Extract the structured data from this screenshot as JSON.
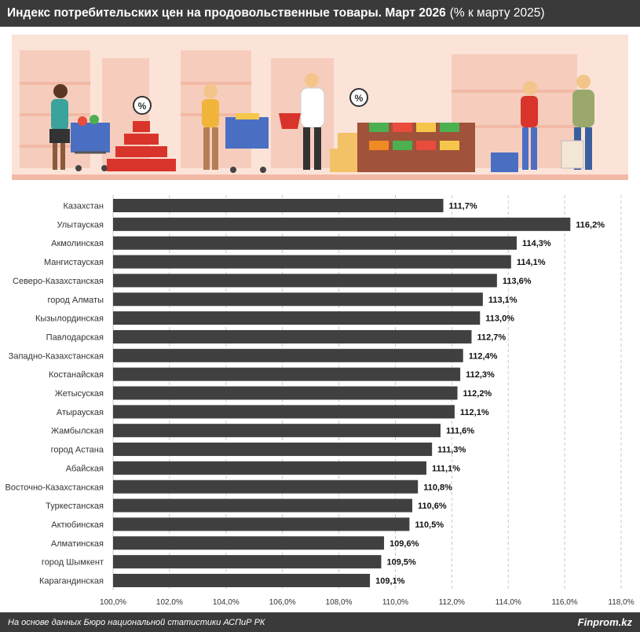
{
  "title": {
    "main": "Индекс потребительских цен на продовольственные товары. Март 2026",
    "sub": "(% к марту 2025)"
  },
  "footer": {
    "source": "На основе данных Бюро национальной статистики АСПиР РК",
    "brand": "Finprom.kz"
  },
  "colors": {
    "bar": "#404040",
    "header_bg": "#3a3a3a",
    "illustration_bg": "#fbe3d8"
  },
  "chart_data": {
    "type": "bar",
    "orientation": "horizontal",
    "categories": [
      "Казахстан",
      "Улытауская",
      "Акмолинская",
      "Мангистауская",
      "Северо-Казахстанская",
      "город Алматы",
      "Кызылординская",
      "Павлодарская",
      "Западно-Казахстанская",
      "Костанайская",
      "Жетысуская",
      "Атырауская",
      "Жамбылская",
      "город Астана",
      "Абайская",
      "Восточно-Казахстанская",
      "Туркестанская",
      "Актюбинская",
      "Алматинская",
      "город Шымкент",
      "Карагандинская"
    ],
    "values": [
      111.7,
      116.2,
      114.3,
      114.1,
      113.6,
      113.1,
      113.0,
      112.7,
      112.4,
      112.3,
      112.2,
      112.1,
      111.6,
      111.3,
      111.1,
      110.8,
      110.6,
      110.5,
      109.6,
      109.5,
      109.1
    ],
    "labels": [
      "111,7%",
      "116,2%",
      "114,3%",
      "114,1%",
      "113,6%",
      "113,1%",
      "113,0%",
      "112,7%",
      "112,4%",
      "112,3%",
      "112,2%",
      "112,1%",
      "111,6%",
      "111,3%",
      "111,1%",
      "110,8%",
      "110,6%",
      "110,5%",
      "109,6%",
      "109,5%",
      "109,1%"
    ],
    "xlim": [
      100,
      118
    ],
    "xticks": [
      100,
      102,
      104,
      106,
      108,
      110,
      112,
      114,
      116,
      118
    ],
    "xtick_labels": [
      "100,0%",
      "102,0%",
      "104,0%",
      "106,0%",
      "108,0%",
      "110,0%",
      "112,0%",
      "114,0%",
      "116,0%",
      "118,0%"
    ],
    "grid": "vertical dashed"
  }
}
